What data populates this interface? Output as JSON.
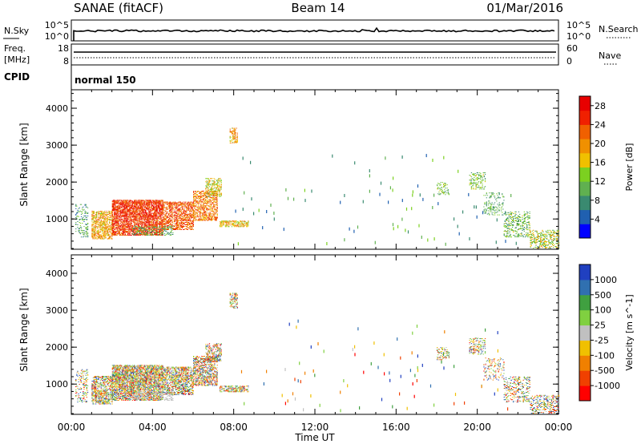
{
  "header": {
    "title": "SANAE (fitACF)",
    "beam": "Beam 14",
    "date": "01/Mar/2016"
  },
  "summary_panel": {
    "nsky_label": "N.Sky",
    "nsky_ticks": [
      "10^5",
      "10^0"
    ],
    "nsearch_label": "N.Search",
    "nsearch_ticks": [
      "10^5",
      "10^0"
    ],
    "freq_label": "Freq.",
    "freq_unit": "[MHz]",
    "freq_ticks": [
      "18",
      "8"
    ],
    "nave_label": "Nave",
    "nave_ticks": [
      "60",
      "0"
    ],
    "cpid_label": "CPID",
    "cpid_value": "normal 150"
  },
  "colors": {
    "power": [
      "#0000ff",
      "#2060b0",
      "#3a8a70",
      "#60b050",
      "#7cd020",
      "#f0c000",
      "#f09000",
      "#f06000",
      "#f02000",
      "#e80000"
    ],
    "velocity": [
      "#ff0000",
      "#f04000",
      "#f08000",
      "#f0c000",
      "#c0c0c0",
      "#80d040",
      "#40a040",
      "#3070b0",
      "#2040c0"
    ],
    "scatter_dominant_power": "#e86010",
    "ground_scatter": "#c0c0c0"
  },
  "chart_data": [
    {
      "type": "heatmap",
      "panel": "power",
      "ylabel": "Slant Range [km]",
      "xlabel": "",
      "y_ticks": [
        "1000",
        "2000",
        "3000",
        "4000"
      ],
      "ylim": [
        180,
        4500
      ],
      "x_ticks": [
        "00:00",
        "04:00",
        "08:00",
        "12:00",
        "16:00",
        "20:00",
        "00:00"
      ],
      "xlim_hours": [
        0,
        24
      ],
      "colorbar_label": "Power [dB]",
      "colorbar_ticks": [
        "4",
        "8",
        "12",
        "16",
        "20",
        "24",
        "28"
      ],
      "colorbar_range": [
        0,
        30
      ]
    },
    {
      "type": "heatmap",
      "panel": "velocity",
      "ylabel": "Slant Range [km]",
      "xlabel": "Time UT",
      "y_ticks": [
        "1000",
        "2000",
        "3000",
        "4000"
      ],
      "ylim": [
        180,
        4500
      ],
      "x_ticks": [
        "00:00",
        "04:00",
        "08:00",
        "12:00",
        "16:00",
        "20:00",
        "00:00"
      ],
      "xlim_hours": [
        0,
        24
      ],
      "colorbar_label": "Velocity [m s^-1]",
      "colorbar_ticks": [
        "1000",
        "500",
        "100",
        "25",
        "-25",
        "-100",
        "-500",
        "-1000"
      ]
    }
  ],
  "scatter_regions": [
    {
      "t0": 0.2,
      "t1": 0.8,
      "r0": 500,
      "r1": 1400,
      "dens": 0.25,
      "p0": 4,
      "p1": 14,
      "v": 1
    },
    {
      "t0": 1.0,
      "t1": 2.0,
      "r0": 450,
      "r1": 1200,
      "dens": 0.6,
      "p0": 14,
      "p1": 24,
      "v": 1
    },
    {
      "t0": 2.0,
      "t1": 4.5,
      "r0": 550,
      "r1": 1500,
      "dens": 0.75,
      "p0": 20,
      "p1": 30,
      "v": 1
    },
    {
      "t0": 4.5,
      "t1": 6.0,
      "r0": 700,
      "r1": 1450,
      "dens": 0.6,
      "p0": 18,
      "p1": 28,
      "v": 1
    },
    {
      "t0": 6.0,
      "t1": 7.2,
      "r0": 950,
      "r1": 1750,
      "dens": 0.55,
      "p0": 16,
      "p1": 26,
      "v": 2
    },
    {
      "t0": 6.6,
      "t1": 7.4,
      "r0": 1600,
      "r1": 2100,
      "dens": 0.45,
      "p0": 10,
      "p1": 20,
      "v": 2
    },
    {
      "t0": 7.3,
      "t1": 8.7,
      "r0": 780,
      "r1": 950,
      "dens": 0.6,
      "p0": 12,
      "p1": 22,
      "v": 1
    },
    {
      "t0": 7.8,
      "t1": 8.2,
      "r0": 3050,
      "r1": 3450,
      "dens": 0.45,
      "p0": 14,
      "p1": 24,
      "v": 2
    },
    {
      "t0": 3.0,
      "t1": 5.0,
      "r0": 550,
      "r1": 800,
      "dens": 0.35,
      "p0": 6,
      "p1": 14,
      "g": 1
    },
    {
      "t0": 18.0,
      "t1": 18.6,
      "r0": 1650,
      "r1": 2000,
      "dens": 0.3,
      "p0": 8,
      "p1": 16,
      "v": 1
    },
    {
      "t0": 19.6,
      "t1": 20.4,
      "r0": 1800,
      "r1": 2250,
      "dens": 0.35,
      "p0": 8,
      "p1": 16,
      "v": 1
    },
    {
      "t0": 20.3,
      "t1": 21.3,
      "r0": 1100,
      "r1": 1700,
      "dens": 0.2,
      "p0": 6,
      "p1": 14,
      "v": 2
    },
    {
      "t0": 21.3,
      "t1": 22.6,
      "r0": 500,
      "r1": 1200,
      "dens": 0.3,
      "p0": 6,
      "p1": 16,
      "v": 2
    },
    {
      "t0": 22.6,
      "t1": 24.0,
      "r0": 200,
      "r1": 700,
      "dens": 0.4,
      "p0": 8,
      "p1": 20,
      "v": 2
    }
  ]
}
